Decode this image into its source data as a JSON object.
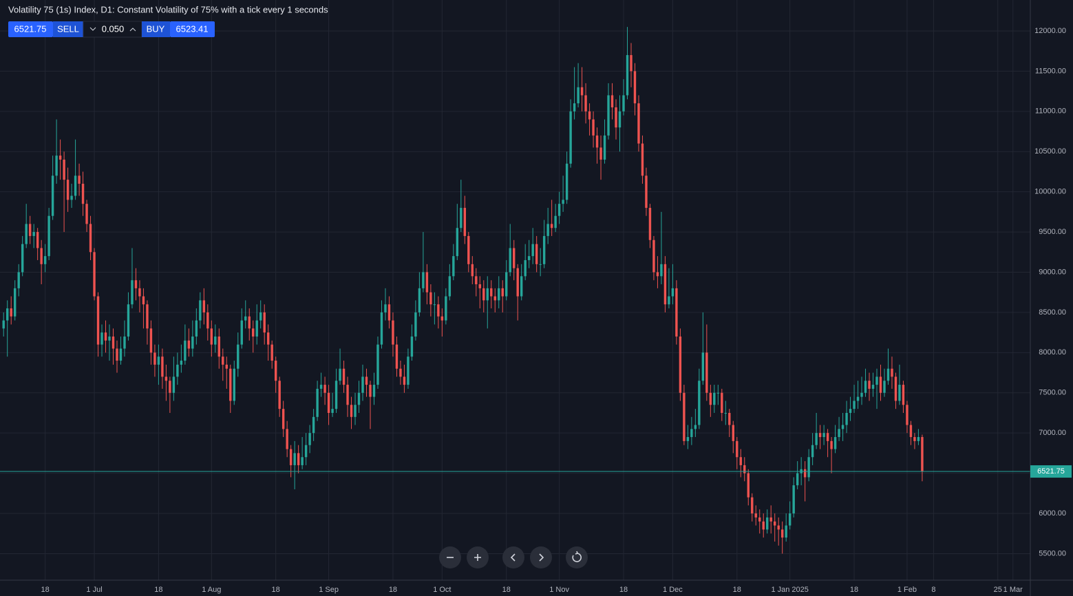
{
  "toolbar": {
    "sell_price": "6521.75",
    "sell_label": "SELL",
    "lot": "0.050",
    "buy_label": "BUY",
    "buy_price": "6523.41"
  },
  "chart_data": {
    "type": "candlestick",
    "title": "Volatility 75 (1s) Index, D1: Constant Volatility of 75% with a tick every 1 seconds",
    "up_color": "#26a69a",
    "down_color": "#ef5350",
    "grid": true,
    "last_price": 6521.75,
    "last_price_color": "#26a69a",
    "open": [
      8300,
      8400,
      8550,
      8450,
      8800,
      9000,
      9350,
      9600,
      9450,
      9500,
      9300,
      9100,
      9200,
      9700,
      10200,
      10450,
      10400,
      10150,
      9900,
      9950,
      10200,
      10100,
      9850,
      9600,
      9250,
      8700,
      8100,
      8250,
      8150,
      8200,
      8050,
      7900,
      8050,
      8200,
      8600,
      8900,
      8800,
      8700,
      8600,
      8300,
      8000,
      7850,
      7950,
      7700,
      7650,
      7500,
      7700,
      7850,
      7900,
      8150,
      8050,
      8200,
      8400,
      8650,
      8500,
      8300,
      8100,
      8200,
      7950,
      7850,
      7800,
      7400,
      7800,
      8100,
      8400,
      8450,
      8300,
      8200,
      8400,
      8500,
      8250,
      8100,
      7900,
      7650,
      7300,
      7050,
      6800,
      6600,
      6750,
      6600,
      6700,
      6850,
      7000,
      7200,
      7550,
      7600,
      7500,
      7250,
      7300,
      7650,
      7800,
      7600,
      7350,
      7200,
      7350,
      7500,
      7700,
      7600,
      7450,
      7600,
      8100,
      8500,
      8600,
      8400,
      8100,
      7800,
      7700,
      7600,
      7950,
      8200,
      8500,
      8800,
      9000,
      8750,
      8600,
      8600,
      8450,
      8400,
      8700,
      8950,
      9200,
      9550,
      9800,
      9450,
      9100,
      8950,
      8850,
      8800,
      8650,
      8800,
      8700,
      8650,
      8800,
      8700,
      9000,
      9300,
      9050,
      8700,
      8950,
      9150,
      9200,
      9350,
      9100,
      9100,
      9450,
      9600,
      9550,
      9700,
      9850,
      9900,
      10350,
      11000,
      11100,
      11300,
      11200,
      11000,
      10900,
      10700,
      10550,
      10400,
      10700,
      11200,
      11050,
      10800,
      11000,
      11200,
      11700,
      11500,
      11100,
      10600,
      10200,
      9800,
      9400,
      9000,
      8950,
      9100,
      8600,
      8700,
      8800,
      8200,
      7500,
      6900,
      6950,
      7050,
      7100,
      7650,
      8000,
      7500,
      7350,
      7500,
      7500,
      7250,
      7250,
      7100,
      6900,
      6700,
      6600,
      6500,
      6200,
      6000,
      5950,
      5900,
      5800,
      5950,
      5900,
      5850,
      5800,
      5700,
      5850,
      6000,
      6350,
      6500,
      6550,
      6450,
      6700,
      6850,
      7000,
      6950,
      7000,
      6900,
      6800,
      6950,
      7050,
      7100,
      7250,
      7300,
      7400,
      7450,
      7500,
      7650,
      7550,
      7600,
      7700,
      7500,
      7650,
      7800,
      7700,
      7400,
      7600,
      7350,
      7100,
      6950,
      6900,
      6950
    ],
    "high": [
      8500,
      8650,
      8700,
      8900,
      9100,
      9450,
      9850,
      9700,
      9600,
      9550,
      9400,
      9350,
      9800,
      10450,
      10900,
      10650,
      10500,
      10300,
      10100,
      10650,
      10350,
      10250,
      9900,
      9700,
      9300,
      8750,
      8350,
      8400,
      8350,
      8300,
      8150,
      8200,
      8400,
      8750,
      9300,
      9050,
      8900,
      8800,
      8650,
      8400,
      8100,
      8100,
      8050,
      7850,
      7700,
      7950,
      8000,
      8100,
      8350,
      8300,
      8400,
      8550,
      8750,
      8800,
      8600,
      8400,
      8350,
      8300,
      8050,
      7950,
      7850,
      7900,
      8250,
      8550,
      8650,
      8550,
      8400,
      8600,
      8650,
      8600,
      8350,
      8150,
      7950,
      7700,
      7400,
      7150,
      6850,
      6900,
      6850,
      6950,
      7000,
      7100,
      7300,
      7650,
      7750,
      7700,
      7600,
      7500,
      7800,
      8050,
      7900,
      7700,
      7450,
      7500,
      7650,
      7850,
      7800,
      7650,
      7750,
      8200,
      8650,
      8800,
      8700,
      8500,
      8200,
      7900,
      7850,
      8050,
      8350,
      8650,
      9000,
      9500,
      9100,
      8850,
      8750,
      8700,
      8550,
      8800,
      9100,
      9350,
      9850,
      10150,
      9950,
      9500,
      9200,
      9050,
      8950,
      8900,
      8950,
      8900,
      8800,
      8950,
      8900,
      9150,
      9600,
      9400,
      9100,
      9100,
      9350,
      9400,
      9550,
      9450,
      9300,
      9650,
      9800,
      9900,
      9850,
      10000,
      10200,
      10500,
      11150,
      11550,
      11600,
      11550,
      11350,
      11100,
      11000,
      10800,
      10700,
      10900,
      11350,
      11350,
      11150,
      11200,
      11400,
      12050,
      11850,
      11600,
      11200,
      10700,
      10300,
      9850,
      9450,
      9200,
      9750,
      9200,
      9050,
      9100,
      8900,
      8300,
      7600,
      7100,
      7200,
      7300,
      7800,
      8500,
      8350,
      7600,
      7600,
      7600,
      7550,
      7400,
      7300,
      7150,
      6950,
      6800,
      6700,
      6550,
      6250,
      6100,
      6050,
      6000,
      6050,
      6100,
      6000,
      5950,
      5900,
      6000,
      6150,
      6450,
      6650,
      6700,
      6650,
      6800,
      7000,
      7250,
      7100,
      7100,
      7050,
      6950,
      7100,
      7200,
      7250,
      7400,
      7450,
      7600,
      7650,
      7700,
      7800,
      7750,
      7750,
      7800,
      7850,
      7800,
      8050,
      7950,
      7750,
      7850,
      7650,
      7400,
      7150,
      7000,
      7050,
      6980
    ],
    "low": [
      8200,
      7950,
      8350,
      8400,
      8700,
      8950,
      9300,
      9350,
      9300,
      9150,
      8850,
      9000,
      9150,
      9650,
      10100,
      10150,
      9500,
      9750,
      9800,
      9900,
      9950,
      9700,
      9500,
      9150,
      8650,
      7950,
      7950,
      8000,
      7900,
      7850,
      7750,
      7850,
      7950,
      8150,
      8550,
      8650,
      8500,
      8300,
      8100,
      7850,
      7700,
      7600,
      7550,
      7400,
      7250,
      7400,
      7600,
      7750,
      7850,
      7950,
      7950,
      8100,
      8300,
      8350,
      8150,
      7950,
      8000,
      7800,
      7650,
      7550,
      7250,
      7350,
      7700,
      8050,
      8300,
      8150,
      8000,
      8100,
      8300,
      8100,
      7900,
      7800,
      7500,
      7200,
      6950,
      6700,
      6450,
      6300,
      6500,
      6550,
      6600,
      6750,
      6900,
      7150,
      7450,
      7350,
      7100,
      7200,
      7250,
      7600,
      7500,
      7200,
      7050,
      7100,
      7250,
      7400,
      7450,
      7050,
      7350,
      7550,
      8050,
      8400,
      8300,
      7950,
      7700,
      7600,
      7500,
      7550,
      7900,
      8150,
      8450,
      8750,
      8600,
      8450,
      8350,
      8300,
      8200,
      8350,
      8650,
      8900,
      9150,
      9500,
      9350,
      9000,
      8850,
      8700,
      8550,
      8500,
      8300,
      8550,
      8500,
      8550,
      8500,
      8650,
      8950,
      8900,
      8400,
      8650,
      8900,
      9050,
      9100,
      9000,
      8950,
      9050,
      9350,
      9450,
      9500,
      9600,
      9750,
      9850,
      10300,
      10900,
      11050,
      11000,
      10850,
      10700,
      10550,
      10350,
      10150,
      10350,
      10650,
      10900,
      10650,
      10500,
      10950,
      11150,
      11300,
      10950,
      10500,
      10100,
      9700,
      9300,
      8900,
      8800,
      8850,
      8500,
      8550,
      8600,
      8100,
      7400,
      6850,
      6800,
      6850,
      6950,
      7050,
      7600,
      7400,
      7200,
      7250,
      7350,
      7150,
      7100,
      6950,
      6750,
      6550,
      6450,
      6400,
      6100,
      5900,
      5850,
      5750,
      5700,
      5750,
      5750,
      5650,
      5600,
      5500,
      5650,
      5800,
      5950,
      6300,
      6350,
      6150,
      6400,
      6600,
      6800,
      6800,
      6850,
      6700,
      6500,
      6750,
      6900,
      6900,
      7000,
      7150,
      7250,
      7300,
      7350,
      7450,
      7400,
      7450,
      7300,
      7400,
      7450,
      7600,
      7550,
      7300,
      7350,
      7250,
      7000,
      6850,
      6800,
      6850,
      6400
    ],
    "close": [
      8400,
      8550,
      8450,
      8800,
      9000,
      9350,
      9600,
      9450,
      9500,
      9300,
      9100,
      9200,
      9700,
      10200,
      10450,
      10400,
      10150,
      9900,
      9950,
      10200,
      10100,
      9850,
      9600,
      9250,
      8700,
      8100,
      8250,
      8150,
      8200,
      8050,
      7900,
      8050,
      8200,
      8600,
      8900,
      8800,
      8700,
      8600,
      8300,
      8000,
      7850,
      7950,
      7700,
      7650,
      7500,
      7700,
      7850,
      7900,
      8150,
      8050,
      8200,
      8400,
      8650,
      8500,
      8300,
      8100,
      8200,
      7950,
      7850,
      7800,
      7400,
      7800,
      8100,
      8400,
      8450,
      8300,
      8200,
      8400,
      8500,
      8250,
      8100,
      7900,
      7650,
      7300,
      7050,
      6800,
      6600,
      6750,
      6600,
      6700,
      6850,
      7000,
      7200,
      7550,
      7600,
      7500,
      7250,
      7300,
      7650,
      7800,
      7600,
      7350,
      7200,
      7350,
      7500,
      7700,
      7600,
      7450,
      7600,
      8100,
      8500,
      8600,
      8400,
      8100,
      7800,
      7700,
      7600,
      7950,
      8200,
      8500,
      8800,
      9000,
      8750,
      8600,
      8600,
      8450,
      8400,
      8700,
      8950,
      9200,
      9550,
      9800,
      9450,
      9100,
      8950,
      8850,
      8800,
      8650,
      8800,
      8700,
      8650,
      8800,
      8700,
      9000,
      9300,
      9050,
      8700,
      8950,
      9150,
      9200,
      9350,
      9100,
      9100,
      9450,
      9600,
      9550,
      9700,
      9850,
      9900,
      10350,
      11000,
      11100,
      11300,
      11200,
      11000,
      10900,
      10700,
      10550,
      10400,
      10700,
      11200,
      11050,
      10800,
      11000,
      11200,
      11700,
      11500,
      11100,
      10600,
      10200,
      9800,
      9400,
      9000,
      8950,
      9100,
      8600,
      8700,
      8800,
      8200,
      7500,
      6900,
      6950,
      7050,
      7100,
      7650,
      8000,
      7500,
      7350,
      7500,
      7500,
      7250,
      7250,
      7100,
      6900,
      6700,
      6600,
      6500,
      6200,
      6000,
      5950,
      5900,
      5800,
      5950,
      5900,
      5850,
      5800,
      5700,
      5850,
      6000,
      6350,
      6500,
      6550,
      6450,
      6700,
      6850,
      7000,
      6950,
      7000,
      6900,
      6800,
      6950,
      7050,
      7100,
      7250,
      7300,
      7400,
      7450,
      7500,
      7650,
      7550,
      7600,
      7700,
      7500,
      7650,
      7800,
      7700,
      7400,
      7600,
      7350,
      7100,
      6950,
      6900,
      6950,
      6521.75
    ],
    "ylim": [
      5170,
      12385
    ],
    "yticks": [
      {
        "value": 5500,
        "label": "5500.00"
      },
      {
        "value": 6000,
        "label": "6000.00"
      },
      {
        "value": 6500,
        "label": "6500.00"
      },
      {
        "value": 7000,
        "label": "7000.00"
      },
      {
        "value": 7500,
        "label": "7500.00"
      },
      {
        "value": 8000,
        "label": "8000.00"
      },
      {
        "value": 8500,
        "label": "8500.00"
      },
      {
        "value": 9000,
        "label": "9000.00"
      },
      {
        "value": 9500,
        "label": "9500.00"
      },
      {
        "value": 10000,
        "label": "10000.00"
      },
      {
        "value": 10500,
        "label": "10500.00"
      },
      {
        "value": 11000,
        "label": "11000.00"
      },
      {
        "value": 11500,
        "label": "11500.00"
      },
      {
        "value": 12000,
        "label": "12000.00"
      }
    ],
    "xlim": [
      -0.95,
      271.6
    ],
    "xticks": [
      {
        "value": 11,
        "label": "18"
      },
      {
        "value": 24,
        "label": "1 Jul"
      },
      {
        "value": 41,
        "label": "18"
      },
      {
        "value": 55,
        "label": "1 Aug"
      },
      {
        "value": 72,
        "label": "18"
      },
      {
        "value": 86,
        "label": "1 Sep"
      },
      {
        "value": 103,
        "label": "18"
      },
      {
        "value": 116,
        "label": "1 Oct"
      },
      {
        "value": 133,
        "label": "18"
      },
      {
        "value": 147,
        "label": "1 Nov"
      },
      {
        "value": 164,
        "label": "18"
      },
      {
        "value": 177,
        "label": "1 Dec"
      },
      {
        "value": 194,
        "label": "18"
      },
      {
        "value": 208,
        "label": "1 Jan 2025"
      },
      {
        "value": 225,
        "label": "18"
      },
      {
        "value": 239,
        "label": "1 Feb"
      },
      {
        "value": 246,
        "label": "8"
      },
      {
        "value": 263,
        "label": "25"
      },
      {
        "value": 267,
        "label": "1 Mar"
      }
    ]
  }
}
